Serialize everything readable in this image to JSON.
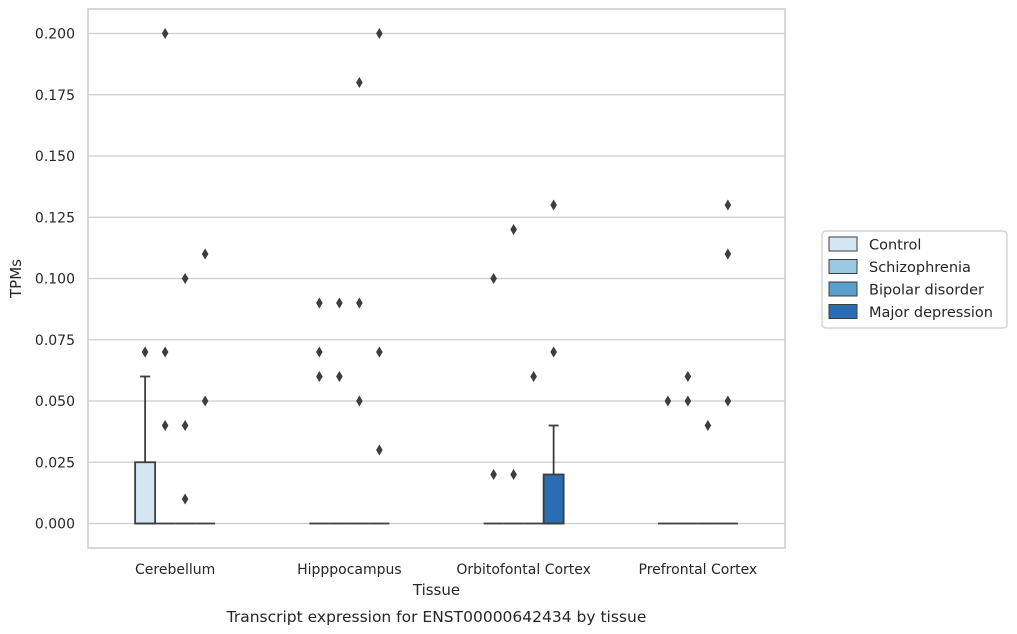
{
  "chart_data": {
    "type": "box",
    "xlabel": "Tissue",
    "ylabel": "TPMs",
    "caption": "Transcript expression for ENST00000642434 by tissue",
    "ylim": [
      -0.01,
      0.21
    ],
    "yticks": [
      0.0,
      0.025,
      0.05,
      0.075,
      0.1,
      0.125,
      0.15,
      0.175,
      0.2
    ],
    "ytick_labels": [
      "0.000",
      "0.025",
      "0.050",
      "0.075",
      "0.100",
      "0.125",
      "0.150",
      "0.175",
      "0.200"
    ],
    "grid": "horizontal",
    "legend_position": "right",
    "categories": [
      "Cerebellum",
      "Hipppocampus",
      "Orbitofontal Cortex",
      "Prefrontal Cortex"
    ],
    "series": [
      {
        "name": "Control",
        "color": "#d6e5f4",
        "boxes": [
          {
            "q1": 0.0,
            "median": 0.0,
            "q3": 0.025,
            "whislo": 0.0,
            "whishi": 0.06,
            "fliers": [
              0.07
            ]
          },
          {
            "q1": 0.0,
            "median": 0.0,
            "q3": 0.0,
            "whislo": 0.0,
            "whishi": 0.0,
            "fliers": [
              0.06,
              0.07,
              0.09
            ]
          },
          {
            "q1": 0.0,
            "median": 0.0,
            "q3": 0.0,
            "whislo": 0.0,
            "whishi": 0.0,
            "fliers": [
              0.02,
              0.1
            ]
          },
          {
            "q1": 0.0,
            "median": 0.0,
            "q3": 0.0,
            "whislo": 0.0,
            "whishi": 0.0,
            "fliers": [
              0.05
            ]
          }
        ]
      },
      {
        "name": "Schizophrenia",
        "color": "#9ac8e0",
        "boxes": [
          {
            "q1": 0.0,
            "median": 0.0,
            "q3": 0.0,
            "whislo": 0.0,
            "whishi": 0.0,
            "fliers": [
              0.04,
              0.07,
              0.2
            ]
          },
          {
            "q1": 0.0,
            "median": 0.0,
            "q3": 0.0,
            "whislo": 0.0,
            "whishi": 0.0,
            "fliers": [
              0.06,
              0.09
            ]
          },
          {
            "q1": 0.0,
            "median": 0.0,
            "q3": 0.0,
            "whislo": 0.0,
            "whishi": 0.0,
            "fliers": [
              0.02,
              0.12
            ]
          },
          {
            "q1": 0.0,
            "median": 0.0,
            "q3": 0.0,
            "whislo": 0.0,
            "whishi": 0.0,
            "fliers": [
              0.05,
              0.06
            ]
          }
        ]
      },
      {
        "name": "Bipolar disorder",
        "color": "#5a9fcd",
        "boxes": [
          {
            "q1": 0.0,
            "median": 0.0,
            "q3": 0.0,
            "whislo": 0.0,
            "whishi": 0.0,
            "fliers": [
              0.01,
              0.04,
              0.1
            ]
          },
          {
            "q1": 0.0,
            "median": 0.0,
            "q3": 0.0,
            "whislo": 0.0,
            "whishi": 0.0,
            "fliers": [
              0.05,
              0.09,
              0.18
            ]
          },
          {
            "q1": 0.0,
            "median": 0.0,
            "q3": 0.0,
            "whislo": 0.0,
            "whishi": 0.0,
            "fliers": [
              0.06
            ]
          },
          {
            "q1": 0.0,
            "median": 0.0,
            "q3": 0.0,
            "whislo": 0.0,
            "whishi": 0.0,
            "fliers": [
              0.04
            ]
          }
        ]
      },
      {
        "name": "Major depression",
        "color": "#2a6db3",
        "boxes": [
          {
            "q1": 0.0,
            "median": 0.0,
            "q3": 0.0,
            "whislo": 0.0,
            "whishi": 0.0,
            "fliers": [
              0.05,
              0.11
            ]
          },
          {
            "q1": 0.0,
            "median": 0.0,
            "q3": 0.0,
            "whislo": 0.0,
            "whishi": 0.0,
            "fliers": [
              0.03,
              0.07,
              0.2
            ]
          },
          {
            "q1": 0.0,
            "median": 0.0,
            "q3": 0.02,
            "whislo": 0.0,
            "whishi": 0.04,
            "fliers": [
              0.07,
              0.13
            ]
          },
          {
            "q1": 0.0,
            "median": 0.0,
            "q3": 0.0,
            "whislo": 0.0,
            "whishi": 0.0,
            "fliers": [
              0.05,
              0.11,
              0.13
            ]
          }
        ]
      }
    ]
  }
}
